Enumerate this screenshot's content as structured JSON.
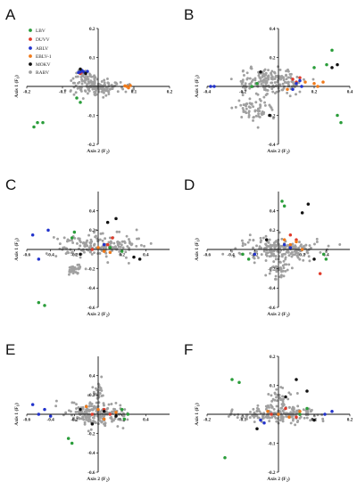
{
  "figure": {
    "panels": [
      "A",
      "B",
      "C",
      "D",
      "E",
      "F"
    ]
  },
  "legend": {
    "entries": [
      {
        "label": "LBV",
        "color": "#2a9d3a"
      },
      {
        "label": "DUVV",
        "color": "#e03a2a"
      },
      {
        "label": "ABLV",
        "color": "#2233cc"
      },
      {
        "label": "EBLV-1",
        "color": "#f07a1a"
      },
      {
        "label": "MOKV",
        "color": "#111111"
      },
      {
        "label": "RABV",
        "color": "#a0a0a0"
      }
    ]
  },
  "chart_data": [
    {
      "panel": "A",
      "type": "scatter",
      "xlabel_main": "Axis 2 (F",
      "xlabel_sub": "2",
      "xlabel_close": ")",
      "ylabel_main": "Axis 1 (F",
      "ylabel_sub": "1",
      "ylabel_close": ")",
      "xlim": [
        -0.2,
        0.2
      ],
      "ylim": [
        -0.2,
        0.2
      ],
      "xticks": [
        -0.2,
        -0.1,
        0.1,
        0.2
      ],
      "yticks": [
        -0.2,
        -0.1,
        0.1,
        0.2
      ],
      "xtick_labels": [
        "-0.2",
        "-0.1",
        "0.1",
        "0.2"
      ],
      "ytick_labels": [
        "-0.2",
        "-0.1",
        "0.1",
        "0.2"
      ],
      "grey_cluster": [
        {
          "cx": 0.0,
          "cy": 0.0,
          "rx": 0.07,
          "ry": 0.03,
          "n": 140
        },
        {
          "cx": -0.04,
          "cy": 0.035,
          "rx": 0.03,
          "ry": 0.03,
          "n": 40
        }
      ],
      "series": [
        {
          "name": "LBV",
          "points": [
            [
              -0.18,
              -0.14
            ],
            [
              -0.17,
              -0.125
            ],
            [
              -0.155,
              -0.125
            ],
            [
              -0.06,
              -0.04
            ],
            [
              -0.05,
              -0.055
            ]
          ]
        },
        {
          "name": "DUVV",
          "points": [
            [
              -0.05,
              0.045
            ],
            [
              -0.045,
              0.05
            ]
          ]
        },
        {
          "name": "ABLV",
          "points": [
            [
              -0.05,
              0.05
            ],
            [
              -0.045,
              0.055
            ],
            [
              -0.04,
              0.05
            ],
            [
              -0.055,
              0.048
            ],
            [
              -0.03,
              0.052
            ]
          ]
        },
        {
          "name": "EBLV-1",
          "points": [
            [
              0.08,
              0.0
            ],
            [
              0.085,
              -0.005
            ],
            [
              0.09,
              0.003
            ],
            [
              0.075,
              0.002
            ]
          ]
        },
        {
          "name": "MOKV",
          "points": [
            [
              -0.05,
              0.06
            ],
            [
              -0.035,
              0.045
            ]
          ]
        }
      ]
    },
    {
      "panel": "B",
      "type": "scatter",
      "xlabel_main": "Axis 2 (F",
      "xlabel_sub": "2",
      "xlabel_close": ")",
      "ylabel_main": "Axis 1 (F",
      "ylabel_sub": "1",
      "ylabel_close": ")",
      "xlim": [
        -0.4,
        0.4
      ],
      "ylim": [
        -0.4,
        0.4
      ],
      "xticks": [
        -0.4,
        -0.2,
        0.2,
        0.4
      ],
      "yticks": [
        -0.4,
        -0.2,
        0.2,
        0.4
      ],
      "xtick_labels": [
        "-0.4",
        "-0.2",
        "0.2",
        "0.4"
      ],
      "ytick_labels": [
        "-0.4",
        "-0.2",
        "0.2",
        "0.4"
      ],
      "grey_cluster": [
        {
          "cx": -0.05,
          "cy": 0.03,
          "rx": 0.18,
          "ry": 0.09,
          "n": 180
        },
        {
          "cx": -0.15,
          "cy": -0.15,
          "rx": 0.1,
          "ry": 0.08,
          "n": 60
        }
      ],
      "series": [
        {
          "name": "LBV",
          "points": [
            [
              -0.15,
              0.0
            ],
            [
              -0.12,
              0.02
            ],
            [
              0.27,
              0.15
            ],
            [
              0.3,
              0.25
            ],
            [
              0.33,
              -0.2
            ],
            [
              0.35,
              -0.25
            ],
            [
              0.2,
              0.13
            ]
          ]
        },
        {
          "name": "DUVV",
          "points": [
            [
              0.08,
              0.05
            ],
            [
              0.1,
              0.03
            ],
            [
              0.12,
              0.06
            ]
          ]
        },
        {
          "name": "ABLV",
          "points": [
            [
              -0.38,
              0.0
            ],
            [
              -0.36,
              0.0
            ],
            [
              0.1,
              0.02
            ],
            [
              0.12,
              0.04
            ],
            [
              0.08,
              -0.02
            ],
            [
              0.13,
              0.0
            ]
          ]
        },
        {
          "name": "EBLV-1",
          "points": [
            [
              0.15,
              0.03
            ],
            [
              0.2,
              0.02
            ],
            [
              0.22,
              0.0
            ],
            [
              0.25,
              0.03
            ],
            [
              0.05,
              -0.02
            ]
          ]
        },
        {
          "name": "MOKV",
          "points": [
            [
              0.3,
              0.13
            ],
            [
              0.33,
              0.15
            ],
            [
              -0.1,
              0.1
            ],
            [
              -0.05,
              -0.2
            ]
          ]
        }
      ]
    },
    {
      "panel": "C",
      "type": "scatter",
      "xlabel_main": "Axis 2 (F",
      "xlabel_sub": "2",
      "xlabel_close": ")",
      "ylabel_main": "Axis 1 (F",
      "ylabel_sub": "1",
      "ylabel_close": ")",
      "xlim": [
        -0.6,
        0.6
      ],
      "ylim": [
        -0.6,
        0.6
      ],
      "xticks": [
        -0.6,
        -0.4,
        -0.2,
        0.2,
        0.4
      ],
      "yticks": [
        -0.6,
        -0.4,
        -0.2,
        0.2,
        0.4
      ],
      "xtick_labels": [
        "-0.6",
        "-0.4",
        "-0.2",
        "0.2",
        "0.4"
      ],
      "ytick_labels": [
        "-0.6",
        "-0.4",
        "-0.2",
        "0.2",
        "0.4"
      ],
      "grey_cluster": [
        {
          "cx": 0.0,
          "cy": 0.05,
          "rx": 0.35,
          "ry": 0.12,
          "n": 180
        },
        {
          "cx": -0.2,
          "cy": -0.2,
          "rx": 0.06,
          "ry": 0.06,
          "n": 30
        }
      ],
      "series": [
        {
          "name": "LBV",
          "points": [
            [
              -0.5,
              -0.55
            ],
            [
              -0.45,
              -0.58
            ],
            [
              -0.22,
              0.12
            ],
            [
              -0.2,
              0.18
            ],
            [
              0.1,
              0.02
            ],
            [
              0.2,
              -0.02
            ]
          ]
        },
        {
          "name": "DUVV",
          "points": [
            [
              -0.05,
              0.0
            ],
            [
              0.08,
              0.05
            ],
            [
              0.12,
              0.12
            ]
          ]
        },
        {
          "name": "ABLV",
          "points": [
            [
              -0.55,
              0.15
            ],
            [
              -0.42,
              0.2
            ],
            [
              -0.5,
              -0.1
            ],
            [
              0.05,
              0.05
            ]
          ]
        },
        {
          "name": "EBLV-1",
          "points": [
            [
              0.0,
              0.02
            ],
            [
              0.05,
              -0.02
            ],
            [
              0.1,
              -0.03
            ]
          ]
        },
        {
          "name": "MOKV",
          "points": [
            [
              0.15,
              0.32
            ],
            [
              0.08,
              0.28
            ],
            [
              -0.15,
              -0.05
            ],
            [
              0.3,
              -0.08
            ],
            [
              0.35,
              -0.1
            ]
          ]
        }
      ]
    },
    {
      "panel": "D",
      "type": "scatter",
      "xlabel_main": "Axis 2 (F",
      "xlabel_sub": "2",
      "xlabel_close": ")",
      "ylabel_main": "Axis 1 (F",
      "ylabel_sub": "1",
      "ylabel_close": ")",
      "xlim": [
        -0.6,
        0.6
      ],
      "ylim": [
        -0.6,
        0.6
      ],
      "xticks": [
        -0.6,
        -0.4,
        -0.2,
        0.2,
        0.4
      ],
      "yticks": [
        -0.6,
        -0.4,
        -0.2,
        0.2,
        0.4
      ],
      "xtick_labels": [
        "-0.6",
        "-0.4",
        "-0.2",
        "0.2",
        "0.4"
      ],
      "ytick_labels": [
        "-0.6",
        "-0.4",
        "-0.2",
        "0.2",
        "0.4"
      ],
      "grey_cluster": [
        {
          "cx": 0.0,
          "cy": 0.0,
          "rx": 0.35,
          "ry": 0.12,
          "n": 190
        },
        {
          "cx": 0.0,
          "cy": -0.2,
          "rx": 0.08,
          "ry": 0.12,
          "n": 40
        }
      ],
      "series": [
        {
          "name": "LBV",
          "points": [
            [
              0.05,
              0.45
            ],
            [
              0.03,
              0.5
            ],
            [
              -0.25,
              -0.1
            ],
            [
              -0.3,
              -0.05
            ],
            [
              0.4,
              -0.1
            ],
            [
              0.38,
              -0.05
            ]
          ]
        },
        {
          "name": "DUVV",
          "points": [
            [
              0.1,
              0.15
            ],
            [
              0.15,
              0.1
            ],
            [
              0.35,
              -0.25
            ]
          ]
        },
        {
          "name": "ABLV",
          "points": [
            [
              -0.2,
              -0.05
            ],
            [
              0.05,
              0.05
            ],
            [
              0.1,
              0.02
            ]
          ]
        },
        {
          "name": "EBLV-1",
          "points": [
            [
              0.1,
              0.05
            ],
            [
              0.15,
              0.08
            ],
            [
              0.2,
              0.0
            ],
            [
              0.05,
              0.1
            ]
          ]
        },
        {
          "name": "MOKV",
          "points": [
            [
              0.25,
              0.47
            ],
            [
              0.2,
              0.38
            ],
            [
              -0.1,
              0.1
            ],
            [
              0.3,
              -0.1
            ]
          ]
        }
      ]
    },
    {
      "panel": "E",
      "type": "scatter",
      "xlabel_main": "Axis 2 (F",
      "xlabel_sub": "2",
      "xlabel_close": ")",
      "ylabel_main": "Axis 1 (F",
      "ylabel_sub": "1",
      "ylabel_close": ")",
      "xlim": [
        -0.6,
        0.6
      ],
      "ylim": [
        -0.6,
        0.6
      ],
      "xticks": [
        -0.6,
        -0.4,
        -0.2,
        0.2,
        0.4
      ],
      "yticks": [
        -0.6,
        -0.4,
        -0.2,
        0.2,
        0.4
      ],
      "xtick_labels": [
        "-0.6",
        "-0.4",
        "-0.2",
        "0.2",
        "0.4"
      ],
      "ytick_labels": [
        "-0.6",
        "-0.4",
        "-0.2",
        "0.2",
        "0.4"
      ],
      "grey_cluster": [
        {
          "cx": 0.0,
          "cy": 0.0,
          "rx": 0.25,
          "ry": 0.12,
          "n": 190
        },
        {
          "cx": 0.0,
          "cy": 0.2,
          "rx": 0.06,
          "ry": 0.12,
          "n": 30
        }
      ],
      "series": [
        {
          "name": "LBV",
          "points": [
            [
              -0.25,
              -0.25
            ],
            [
              -0.22,
              -0.3
            ],
            [
              0.2,
              0.05
            ],
            [
              0.25,
              0.0
            ],
            [
              0.22,
              -0.05
            ]
          ]
        },
        {
          "name": "DUVV",
          "points": [
            [
              -0.05,
              0.0
            ],
            [
              0.05,
              0.05
            ],
            [
              0.1,
              0.0
            ]
          ]
        },
        {
          "name": "ABLV",
          "points": [
            [
              -0.5,
              0.0
            ],
            [
              -0.45,
              0.05
            ],
            [
              -0.4,
              -0.02
            ],
            [
              -0.55,
              0.1
            ]
          ]
        },
        {
          "name": "EBLV-1",
          "points": [
            [
              0.0,
              0.05
            ],
            [
              0.05,
              -0.05
            ],
            [
              0.15,
              0.02
            ],
            [
              -0.1,
              0.08
            ]
          ]
        },
        {
          "name": "MOKV",
          "points": [
            [
              0.05,
              0.03
            ],
            [
              0.15,
              -0.02
            ],
            [
              -0.05,
              -0.1
            ],
            [
              -0.15,
              0.05
            ]
          ]
        }
      ]
    },
    {
      "panel": "F",
      "type": "scatter",
      "xlabel_main": "Axis 2 (F",
      "xlabel_sub": "2",
      "xlabel_close": ")",
      "ylabel_main": "Axis 1 (F",
      "ylabel_sub": "1",
      "ylabel_close": ")",
      "xlim": [
        -0.2,
        0.2
      ],
      "ylim": [
        -0.2,
        0.2
      ],
      "xticks": [
        -0.2,
        -0.1,
        0.1,
        0.2
      ],
      "yticks": [
        -0.2,
        -0.1,
        0.1,
        0.2
      ],
      "xtick_labels": [
        "-0.2",
        "-0.1",
        "0.1",
        "0.2"
      ],
      "ytick_labels": [
        "-0.2",
        "-0.1",
        "0.1",
        "0.2"
      ],
      "grey_cluster": [
        {
          "cx": 0.0,
          "cy": 0.0,
          "rx": 0.12,
          "ry": 0.025,
          "n": 170
        },
        {
          "cx": 0.0,
          "cy": 0.05,
          "rx": 0.04,
          "ry": 0.04,
          "n": 40
        }
      ],
      "series": [
        {
          "name": "LBV",
          "points": [
            [
              -0.13,
              0.12
            ],
            [
              -0.11,
              0.11
            ],
            [
              -0.15,
              -0.15
            ],
            [
              0.06,
              0.0
            ],
            [
              0.08,
              0.02
            ]
          ]
        },
        {
          "name": "DUVV",
          "points": [
            [
              -0.02,
              0.0
            ],
            [
              0.02,
              0.02
            ],
            [
              0.05,
              -0.01
            ]
          ]
        },
        {
          "name": "ABLV",
          "points": [
            [
              -0.05,
              -0.02
            ],
            [
              -0.04,
              -0.03
            ],
            [
              0.15,
              0.01
            ],
            [
              0.13,
              0.0
            ]
          ]
        },
        {
          "name": "EBLV-1",
          "points": [
            [
              0.0,
              0.0
            ],
            [
              0.03,
              -0.01
            ],
            [
              0.06,
              0.01
            ],
            [
              -0.03,
              0.01
            ]
          ]
        },
        {
          "name": "MOKV",
          "points": [
            [
              0.05,
              0.12
            ],
            [
              -0.06,
              -0.05
            ],
            [
              0.1,
              -0.02
            ],
            [
              0.08,
              0.08
            ],
            [
              0.02,
              0.06
            ]
          ]
        }
      ]
    }
  ]
}
